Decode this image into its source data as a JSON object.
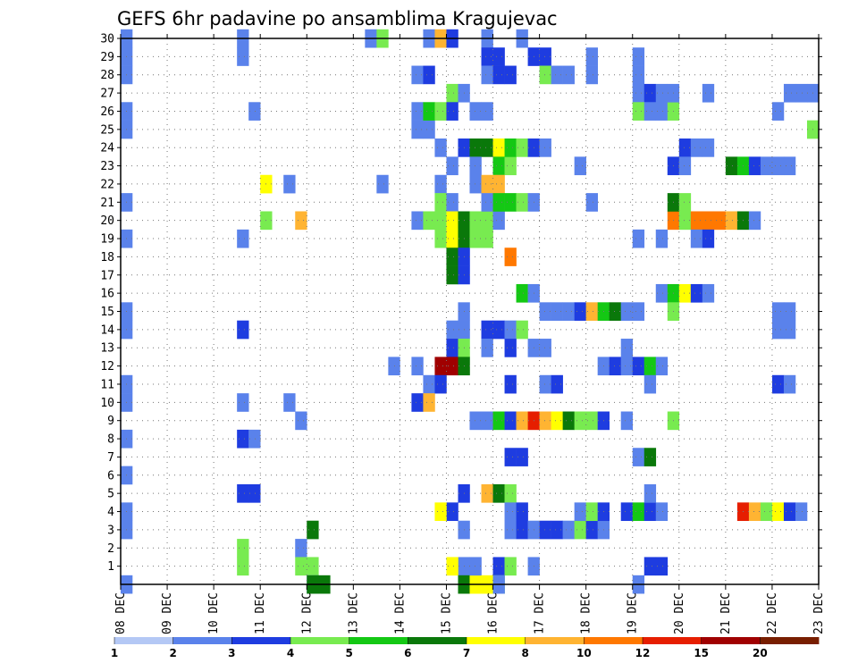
{
  "chart_data": {
    "type": "heatmap",
    "title": "GEFS 6hr padavine po ansamblima Kragujevac",
    "x_tick_labels": [
      "08 DEC",
      "09 DEC",
      "10 DEC",
      "11 DEC",
      "12 DEC",
      "13 DEC",
      "14 DEC",
      "15 DEC",
      "16 DEC",
      "17 DEC",
      "18 DEC",
      "19 DEC",
      "20 DEC",
      "21 DEC",
      "22 DEC",
      "23 DEC"
    ],
    "y_tick_labels": [
      "1",
      "2",
      "3",
      "4",
      "5",
      "6",
      "7",
      "8",
      "9",
      "10",
      "11",
      "12",
      "13",
      "14",
      "15",
      "16",
      "17",
      "18",
      "19",
      "20",
      "21",
      "22",
      "23",
      "24",
      "25",
      "26",
      "27",
      "28",
      "29",
      "30"
    ],
    "x_unit": "6-hour steps from 08 DEC 00Z",
    "x_range": [
      0,
      60
    ],
    "y_range": [
      0,
      30
    ],
    "grid": true,
    "colorbar": {
      "labels": [
        "1",
        "2",
        "3",
        "4",
        "5",
        "6",
        "7",
        "8",
        "10",
        "12",
        "15",
        "20"
      ],
      "colors": [
        "#b4c8f5",
        "#5a82eb",
        "#1e3ce0",
        "#78eb50",
        "#14c814",
        "#0a780a",
        "#ffff00",
        "#ffb432",
        "#ff7800",
        "#e61e00",
        "#a00000",
        "#781e00"
      ]
    },
    "cells": [
      [
        0,
        30,
        1
      ],
      [
        0,
        29,
        1
      ],
      [
        0,
        28,
        1
      ],
      [
        0,
        26,
        1
      ],
      [
        0,
        25,
        1
      ],
      [
        0,
        21,
        1
      ],
      [
        0,
        19,
        1
      ],
      [
        0,
        15,
        1
      ],
      [
        0,
        14,
        1
      ],
      [
        0,
        11,
        1
      ],
      [
        0,
        10,
        1
      ],
      [
        0,
        8,
        1
      ],
      [
        0,
        6,
        1
      ],
      [
        0,
        4,
        1
      ],
      [
        0,
        3,
        1
      ],
      [
        0,
        0,
        1
      ],
      [
        10,
        30,
        1
      ],
      [
        10,
        29,
        1
      ],
      [
        11,
        26,
        1
      ],
      [
        10,
        19,
        1
      ],
      [
        10,
        14,
        2
      ],
      [
        10,
        10,
        1
      ],
      [
        10,
        8,
        2
      ],
      [
        11,
        8,
        1
      ],
      [
        10,
        5,
        2
      ],
      [
        11,
        5,
        2
      ],
      [
        10,
        2,
        3
      ],
      [
        10,
        1,
        3
      ],
      [
        12,
        22,
        6
      ],
      [
        14,
        22,
        1
      ],
      [
        12,
        20,
        3
      ],
      [
        15,
        20,
        7
      ],
      [
        14,
        10,
        1
      ],
      [
        15,
        9,
        1
      ],
      [
        15,
        2,
        1
      ],
      [
        16,
        3,
        5
      ],
      [
        15,
        1,
        3
      ],
      [
        16,
        1,
        3
      ],
      [
        16,
        0,
        1
      ],
      [
        16,
        0,
        5
      ],
      [
        17,
        0,
        5
      ],
      [
        21,
        30,
        1
      ],
      [
        22,
        30,
        3
      ],
      [
        22,
        22,
        1
      ],
      [
        23,
        12,
        1
      ],
      [
        25,
        28,
        1
      ],
      [
        25,
        26,
        1
      ],
      [
        25,
        25,
        1
      ],
      [
        26,
        25,
        1
      ],
      [
        26,
        28,
        2
      ],
      [
        25,
        12,
        1
      ],
      [
        25,
        10,
        2
      ],
      [
        26,
        11,
        1
      ],
      [
        26,
        10,
        7
      ],
      [
        25,
        20,
        1
      ],
      [
        26,
        20,
        3
      ],
      [
        26,
        30,
        1
      ],
      [
        27,
        30,
        7
      ],
      [
        28,
        30,
        2
      ],
      [
        28,
        27,
        3
      ],
      [
        29,
        27,
        1
      ],
      [
        26,
        26,
        4
      ],
      [
        27,
        26,
        3
      ],
      [
        28,
        26,
        2
      ],
      [
        27,
        22,
        1
      ],
      [
        28,
        23,
        1
      ],
      [
        27,
        24,
        1
      ],
      [
        29,
        24,
        2
      ],
      [
        27,
        21,
        3
      ],
      [
        28,
        21,
        1
      ],
      [
        27,
        20,
        3
      ],
      [
        28,
        20,
        6
      ],
      [
        29,
        20,
        5
      ],
      [
        27,
        19,
        3
      ],
      [
        28,
        19,
        6
      ],
      [
        29,
        19,
        5
      ],
      [
        28,
        18,
        5
      ],
      [
        29,
        18,
        2
      ],
      [
        28,
        17,
        5
      ],
      [
        29,
        17,
        2
      ],
      [
        28,
        14,
        1
      ],
      [
        29,
        14,
        1
      ],
      [
        28,
        13,
        2
      ],
      [
        29,
        13,
        3
      ],
      [
        27,
        12,
        10
      ],
      [
        28,
        12,
        10
      ],
      [
        29,
        12,
        5
      ],
      [
        27,
        11,
        2
      ],
      [
        28,
        4,
        2
      ],
      [
        27,
        4,
        6
      ],
      [
        29,
        5,
        2
      ],
      [
        29,
        3,
        1
      ],
      [
        29,
        1,
        1
      ],
      [
        28,
        1,
        6
      ],
      [
        29,
        0,
        5
      ],
      [
        30,
        0,
        6
      ],
      [
        29,
        15,
        1
      ],
      [
        31,
        30,
        1
      ],
      [
        31,
        29,
        2
      ],
      [
        32,
        29,
        2
      ],
      [
        31,
        28,
        1
      ],
      [
        30,
        26,
        1
      ],
      [
        31,
        26,
        1
      ],
      [
        30,
        24,
        5
      ],
      [
        31,
        24,
        5
      ],
      [
        32,
        24,
        6
      ],
      [
        30,
        23,
        1
      ],
      [
        32,
        23,
        4
      ],
      [
        33,
        23,
        3
      ],
      [
        30,
        22,
        1
      ],
      [
        31,
        22,
        7
      ],
      [
        32,
        22,
        7
      ],
      [
        30,
        20,
        3
      ],
      [
        31,
        20,
        3
      ],
      [
        30,
        19,
        3
      ],
      [
        31,
        19,
        3
      ],
      [
        32,
        20,
        1
      ],
      [
        31,
        21,
        1
      ],
      [
        32,
        21,
        4
      ],
      [
        33,
        21,
        4
      ],
      [
        34,
        21,
        3
      ],
      [
        35,
        21,
        1
      ],
      [
        31,
        14,
        2
      ],
      [
        32,
        14,
        2
      ],
      [
        33,
        14,
        1
      ],
      [
        34,
        14,
        3
      ],
      [
        31,
        13,
        1
      ],
      [
        33,
        13,
        2
      ],
      [
        30,
        9,
        1
      ],
      [
        31,
        9,
        1
      ],
      [
        32,
        9,
        4
      ],
      [
        33,
        9,
        2
      ],
      [
        31,
        5,
        7
      ],
      [
        32,
        5,
        5
      ],
      [
        33,
        5,
        3
      ],
      [
        32,
        1,
        2
      ],
      [
        33,
        1,
        3
      ],
      [
        32,
        0,
        3
      ],
      [
        30,
        1,
        1
      ],
      [
        31,
        0,
        6
      ],
      [
        32,
        0,
        1
      ],
      [
        33,
        24,
        4
      ],
      [
        34,
        24,
        3
      ],
      [
        35,
        24,
        2
      ],
      [
        36,
        24,
        1
      ],
      [
        33,
        28,
        2
      ],
      [
        32,
        28,
        2
      ],
      [
        34,
        30,
        1
      ],
      [
        33,
        11,
        2
      ],
      [
        34,
        9,
        7
      ],
      [
        35,
        9,
        9
      ],
      [
        36,
        9,
        7
      ],
      [
        37,
        9,
        6
      ],
      [
        38,
        9,
        5
      ],
      [
        39,
        9,
        3
      ],
      [
        40,
        9,
        3
      ],
      [
        41,
        9,
        2
      ],
      [
        33,
        7,
        2
      ],
      [
        34,
        7,
        2
      ],
      [
        33,
        18,
        8
      ],
      [
        33,
        4,
        1
      ],
      [
        34,
        4,
        2
      ],
      [
        33,
        3,
        1
      ],
      [
        34,
        3,
        2
      ],
      [
        34,
        16,
        4
      ],
      [
        35,
        16,
        1
      ],
      [
        35,
        13,
        1
      ],
      [
        36,
        13,
        1
      ],
      [
        35,
        1,
        1
      ],
      [
        36,
        15,
        1
      ],
      [
        37,
        15,
        1
      ],
      [
        38,
        15,
        1
      ],
      [
        39,
        15,
        2
      ],
      [
        40,
        15,
        7
      ],
      [
        41,
        15,
        4
      ],
      [
        42,
        15,
        5
      ],
      [
        43,
        15,
        1
      ],
      [
        44,
        15,
        1
      ],
      [
        35,
        3,
        1
      ],
      [
        36,
        3,
        2
      ],
      [
        37,
        3,
        2
      ],
      [
        38,
        3,
        1
      ],
      [
        39,
        3,
        3
      ],
      [
        40,
        3,
        2
      ],
      [
        41,
        3,
        1
      ],
      [
        39,
        4,
        1
      ],
      [
        40,
        4,
        3
      ],
      [
        41,
        4,
        2
      ],
      [
        36,
        11,
        1
      ],
      [
        37,
        11,
        2
      ],
      [
        35,
        29,
        2
      ],
      [
        36,
        29,
        2
      ],
      [
        36,
        28,
        3
      ],
      [
        37,
        28,
        1
      ],
      [
        38,
        28,
        1
      ],
      [
        40,
        29,
        1
      ],
      [
        40,
        28,
        1
      ],
      [
        39,
        23,
        1
      ],
      [
        40,
        21,
        1
      ],
      [
        41,
        12,
        1
      ],
      [
        42,
        12,
        2
      ],
      [
        43,
        12,
        1
      ],
      [
        43,
        13,
        1
      ],
      [
        43,
        9,
        1
      ],
      [
        44,
        29,
        1
      ],
      [
        44,
        28,
        1
      ],
      [
        44,
        27,
        1
      ],
      [
        45,
        27,
        2
      ],
      [
        46,
        27,
        1
      ],
      [
        44,
        26,
        3
      ],
      [
        45,
        26,
        1
      ],
      [
        46,
        26,
        1
      ],
      [
        47,
        26,
        3
      ],
      [
        43,
        4,
        2
      ],
      [
        44,
        4,
        4
      ],
      [
        45,
        4,
        2
      ],
      [
        46,
        4,
        1
      ],
      [
        44,
        7,
        1
      ],
      [
        45,
        7,
        5
      ],
      [
        44,
        12,
        2
      ],
      [
        45,
        12,
        4
      ],
      [
        46,
        12,
        1
      ],
      [
        45,
        11,
        1
      ],
      [
        45,
        5,
        1
      ],
      [
        45,
        1,
        2
      ],
      [
        46,
        1,
        2
      ],
      [
        44,
        0,
        1
      ],
      [
        46,
        19,
        1
      ],
      [
        46,
        16,
        1
      ],
      [
        47,
        16,
        4
      ],
      [
        48,
        16,
        6
      ],
      [
        49,
        16,
        2
      ],
      [
        50,
        16,
        1
      ],
      [
        47,
        27,
        1
      ],
      [
        47,
        23,
        2
      ],
      [
        48,
        24,
        2
      ],
      [
        49,
        24,
        1
      ],
      [
        50,
        24,
        1
      ],
      [
        44,
        19,
        1
      ],
      [
        47,
        20,
        8
      ],
      [
        48,
        20,
        3
      ],
      [
        49,
        20,
        8
      ],
      [
        50,
        20,
        8
      ],
      [
        51,
        20,
        8
      ],
      [
        52,
        20,
        7
      ],
      [
        53,
        20,
        5
      ],
      [
        54,
        20,
        1
      ],
      [
        47,
        21,
        5
      ],
      [
        48,
        21,
        3
      ],
      [
        47,
        15,
        3
      ],
      [
        47,
        9,
        3
      ],
      [
        48,
        23,
        1
      ],
      [
        49,
        19,
        1
      ],
      [
        50,
        19,
        2
      ],
      [
        50,
        27,
        1
      ],
      [
        52,
        23,
        5
      ],
      [
        53,
        23,
        4
      ],
      [
        54,
        23,
        2
      ],
      [
        55,
        23,
        1
      ],
      [
        56,
        23,
        1
      ],
      [
        57,
        23,
        1
      ],
      [
        53,
        4,
        9
      ],
      [
        54,
        4,
        7
      ],
      [
        55,
        4,
        3
      ],
      [
        56,
        4,
        6
      ],
      [
        57,
        4,
        2
      ],
      [
        58,
        4,
        1
      ],
      [
        56,
        26,
        1
      ],
      [
        57,
        27,
        1
      ],
      [
        58,
        27,
        1
      ],
      [
        59,
        27,
        1
      ],
      [
        59,
        25,
        3
      ],
      [
        56,
        15,
        1
      ],
      [
        57,
        15,
        1
      ],
      [
        56,
        14,
        1
      ],
      [
        57,
        14,
        1
      ],
      [
        56,
        11,
        2
      ],
      [
        57,
        11,
        1
      ]
    ]
  }
}
